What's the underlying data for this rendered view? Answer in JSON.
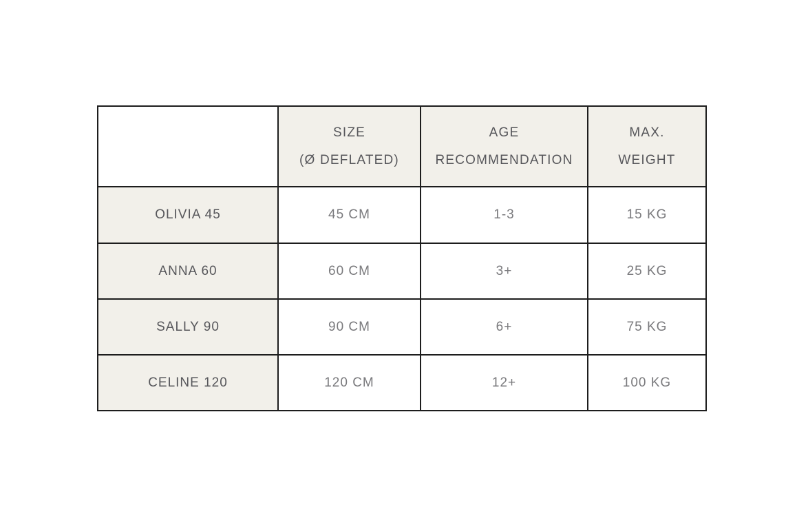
{
  "table": {
    "title": "product-size-specification-table",
    "colors": {
      "border": "#1d1d1d",
      "cell_beige": "#f2f0ea",
      "cell_white": "#ffffff",
      "header_text": "#57575b",
      "value_text": "#7a7a7d",
      "page_bg": "#ffffff"
    },
    "headers": [
      {
        "line1": "",
        "line2": ""
      },
      {
        "line1": "SIZE",
        "line2": "(Ø DEFLATED)"
      },
      {
        "line1": "AGE",
        "line2": "RECOMMENDATION"
      },
      {
        "line1": "MAX.",
        "line2": "WEIGHT"
      }
    ],
    "rows": [
      {
        "model": "OLIVIA 45",
        "size": "45 CM",
        "age": "1-3",
        "weight": "15 KG"
      },
      {
        "model": "ANNA 60",
        "size": "60 CM",
        "age": "3+",
        "weight": "25 KG"
      },
      {
        "model": "SALLY 90",
        "size": "90 CM",
        "age": "6+",
        "weight": "75 KG"
      },
      {
        "model": "CELINE 120",
        "size": "120 CM",
        "age": "12+",
        "weight": "100 KG"
      }
    ]
  }
}
